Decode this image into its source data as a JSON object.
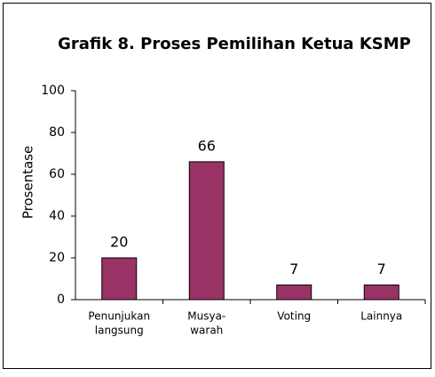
{
  "chart_data": {
    "type": "bar",
    "title": "Grafik 8. Proses Pemilihan Ketua KSMP",
    "ylabel": "Prosentase",
    "categories": [
      [
        "Penunjukan",
        "langsung"
      ],
      [
        "Musya-",
        "warah"
      ],
      [
        "Voting"
      ],
      [
        "Lainnya"
      ]
    ],
    "values": [
      20,
      66,
      7,
      7
    ],
    "color": "#993366",
    "ylim": [
      0,
      100
    ],
    "yticks": [
      0,
      20,
      40,
      60,
      80,
      100
    ],
    "grid": false
  }
}
